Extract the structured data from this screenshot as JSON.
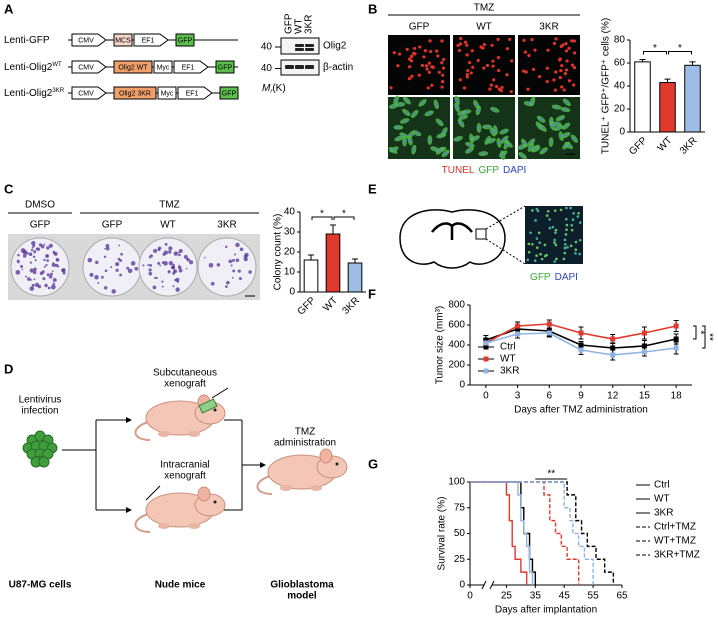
{
  "panels": {
    "A": {
      "label": "A",
      "constructs": [
        {
          "name": "Lenti-GFP",
          "parts": [
            {
              "text": "CMV",
              "shape": "arrow",
              "color": "#ffffff"
            },
            {
              "text": "MCS",
              "shape": "box",
              "color": "#f6d6cc"
            },
            {
              "text": "EF1",
              "shape": "arrow",
              "color": "#ffffff"
            },
            {
              "text": "GFP",
              "shape": "box",
              "color": "#5cbf4d"
            }
          ]
        },
        {
          "name": "Lenti-Olig2",
          "sup": "WT",
          "parts": [
            {
              "text": "CMV",
              "shape": "arrow",
              "color": "#ffffff"
            },
            {
              "text": "Olig2 WT",
              "shape": "box",
              "color": "#f0a06a"
            },
            {
              "text": "Myc",
              "shape": "box",
              "color": "#ffffff"
            },
            {
              "text": "EF1",
              "shape": "arrow",
              "color": "#ffffff"
            },
            {
              "text": "GFP",
              "shape": "box",
              "color": "#5cbf4d"
            }
          ]
        },
        {
          "name": "Lenti-Olig2",
          "sup": "3KR",
          "parts": [
            {
              "text": "CMV",
              "shape": "arrow",
              "color": "#ffffff"
            },
            {
              "text": "Olig2 3KR",
              "shape": "box",
              "color": "#f0a06a"
            },
            {
              "text": "Myc",
              "shape": "box",
              "color": "#ffffff"
            },
            {
              "text": "EF1",
              "shape": "arrow",
              "color": "#ffffff"
            },
            {
              "text": "GFP",
              "shape": "box",
              "color": "#5cbf4d"
            }
          ]
        }
      ],
      "blot": {
        "lanes": [
          "GFP",
          "WT",
          "3KR"
        ],
        "bands": [
          "Olig2",
          "β-actin"
        ],
        "markers": [
          40,
          40
        ],
        "mw_label": {
          "main": "M",
          "sub": "r",
          "rest": "(K)"
        }
      }
    },
    "B": {
      "label": "B",
      "treatment": "TMZ",
      "columns": [
        "GFP",
        "WT",
        "3KR"
      ],
      "stain": [
        {
          "text": "TUNEL",
          "color": "#e0302a"
        },
        {
          "text": "GFP",
          "color": "#3aa83a"
        },
        {
          "text": "DAPI",
          "color": "#2b43c2"
        }
      ]
    },
    "C": {
      "label": "C",
      "groups": [
        {
          "text": "DMSO",
          "columns": [
            "GFP"
          ]
        },
        {
          "text": "TMZ",
          "columns": [
            "GFP",
            "WT",
            "3KR"
          ]
        }
      ]
    },
    "D": {
      "label": "D",
      "infection": [
        "Lentivirus",
        "infection"
      ],
      "cells_caption": "U87-MG cells",
      "xenografts": [
        [
          "Subcutaneous",
          "xenograft"
        ],
        [
          "Intracranial",
          "xenograft"
        ]
      ],
      "mice_caption": "Nude mice",
      "treatment": [
        "TMZ",
        "administration"
      ],
      "model": [
        "Glioblastoma",
        "model"
      ]
    },
    "E": {
      "label": "E",
      "stain": [
        {
          "text": "GFP",
          "color": "#3aa83a"
        },
        {
          "text": "DAPI",
          "color": "#2b43c2"
        }
      ]
    },
    "F": {
      "label": "F"
    },
    "G": {
      "label": "G"
    }
  },
  "chart_data": [
    {
      "type": "bar",
      "ylabel": "TUNEL⁺ GFP⁺/GFP⁺ cells (%)",
      "categories": [
        "GFP",
        "WT",
        "3KR"
      ],
      "values": [
        61,
        43,
        58
      ],
      "errors": [
        2,
        3,
        3
      ],
      "colors": [
        "#ffffff",
        "#e03a2f",
        "#9dbde6"
      ],
      "ylim": [
        0,
        80
      ],
      "yticks": [
        0,
        20,
        40,
        60,
        80
      ],
      "significance": [
        {
          "label": "*",
          "between": [
            0,
            1
          ]
        },
        {
          "label": "*",
          "between": [
            1,
            2
          ]
        }
      ]
    },
    {
      "type": "bar",
      "ylabel": "Colony count (%)",
      "categories": [
        "GFP",
        "WT",
        "3KR"
      ],
      "values": [
        16,
        29,
        14.5
      ],
      "errors": [
        2.5,
        4.5,
        2
      ],
      "colors": [
        "#ffffff",
        "#e03a2f",
        "#9dbde6"
      ],
      "ylim": [
        0,
        40
      ],
      "yticks": [
        0,
        10,
        20,
        30,
        40
      ],
      "significance": [
        {
          "label": "*",
          "between": [
            0,
            1
          ]
        },
        {
          "label": "*",
          "between": [
            1,
            2
          ]
        }
      ]
    },
    {
      "type": "line",
      "xlabel": "Days after TMZ administration",
      "ylabel": "Tumor size (mm³)",
      "x": [
        0,
        3,
        6,
        9,
        12,
        15,
        18
      ],
      "xlim": [
        -1.5,
        19.5
      ],
      "xticks": [
        0,
        3,
        6,
        9,
        12,
        15,
        18
      ],
      "ylim": [
        0,
        800
      ],
      "yticks": [
        0,
        200,
        400,
        600,
        800
      ],
      "legend": "center-left",
      "series": [
        {
          "name": "Ctrl",
          "color": "#000000",
          "values": [
            450,
            560,
            540,
            400,
            370,
            390,
            460
          ],
          "errors": [
            45,
            70,
            50,
            35,
            50,
            55,
            50
          ]
        },
        {
          "name": "WT",
          "color": "#e03a2f",
          "values": [
            420,
            590,
            610,
            520,
            460,
            520,
            590
          ],
          "errors": [
            40,
            40,
            40,
            60,
            45,
            60,
            55
          ]
        },
        {
          "name": "3KR",
          "color": "#8fb4e3",
          "values": [
            420,
            510,
            520,
            350,
            300,
            330,
            370
          ],
          "errors": [
            30,
            40,
            40,
            45,
            50,
            40,
            60
          ]
        }
      ],
      "significance": [
        {
          "label": "*",
          "series": [
            1,
            0
          ]
        },
        {
          "label": "**",
          "series": [
            1,
            2
          ]
        }
      ]
    },
    {
      "type": "step",
      "xlabel": "Days after implantation",
      "ylabel": "Survival rate (%)",
      "xlim": [
        0,
        65
      ],
      "x_break": [
        5,
        20
      ],
      "xticks": [
        0,
        25,
        35,
        45,
        55,
        65
      ],
      "ylim": [
        0,
        100
      ],
      "yticks": [
        0,
        25,
        50,
        75,
        100
      ],
      "legend": "right",
      "series": [
        {
          "name": "Ctrl",
          "color": "#000000",
          "dashed": false,
          "x": [
            0,
            30,
            31,
            33,
            34,
            35
          ],
          "values": [
            100,
            75,
            50,
            25,
            12.5,
            0
          ]
        },
        {
          "name": "WT",
          "color": "#e03a2f",
          "dashed": false,
          "x": [
            0,
            25,
            26,
            27,
            28,
            30,
            32
          ],
          "values": [
            100,
            87.5,
            62.5,
            37.5,
            25,
            12.5,
            0
          ]
        },
        {
          "name": "3KR",
          "color": "#8fb4e3",
          "dashed": false,
          "x": [
            0,
            29,
            30,
            31,
            32,
            33,
            34
          ],
          "values": [
            100,
            87.5,
            62.5,
            50,
            37.5,
            12.5,
            0
          ]
        },
        {
          "name": "Ctrl+TMZ",
          "color": "#000000",
          "dashed": true,
          "x": [
            0,
            46,
            49,
            51,
            53,
            56,
            59,
            62
          ],
          "values": [
            100,
            87.5,
            62.5,
            50,
            37.5,
            25,
            12.5,
            0
          ]
        },
        {
          "name": "WT+TMZ",
          "color": "#e03a2f",
          "dashed": true,
          "x": [
            0,
            38,
            40,
            42,
            44,
            46,
            50
          ],
          "values": [
            100,
            87.5,
            62.5,
            50,
            37.5,
            25,
            0
          ]
        },
        {
          "name": "3KR+TMZ",
          "color": "#8fb4e3",
          "dashed": true,
          "x": [
            0,
            45,
            47,
            48,
            50,
            52,
            55
          ],
          "values": [
            100,
            75,
            62.5,
            50,
            37.5,
            25,
            0
          ]
        }
      ],
      "significance": [
        {
          "label": "**",
          "x": [
            35,
            46
          ]
        }
      ]
    }
  ]
}
